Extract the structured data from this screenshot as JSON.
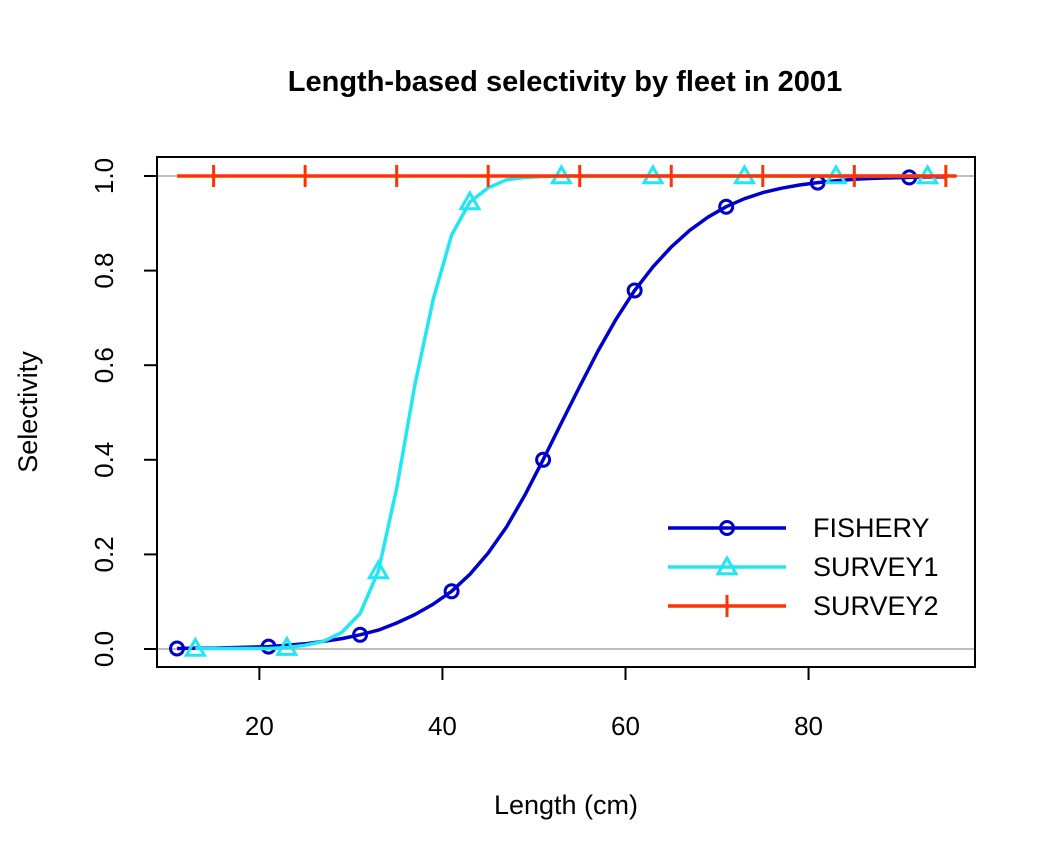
{
  "chart_data": {
    "type": "line",
    "title": "Length-based selectivity by fleet in 2001",
    "xlabel": "Length (cm)",
    "ylabel": "Selectivity",
    "xlim": [
      11,
      96
    ],
    "ylim": [
      0,
      1
    ],
    "x_ticks": [
      "20",
      "40",
      "60",
      "80"
    ],
    "y_ticks": [
      "0.0",
      "0.2",
      "0.4",
      "0.6",
      "0.8",
      "1.0"
    ],
    "reference_lines_y": [
      0,
      1
    ],
    "legend_position": "bottom-right",
    "series": [
      {
        "name": "FISHERY",
        "color": "#0000CD",
        "marker": "circle",
        "x": [
          11,
          13,
          15,
          17,
          19,
          21,
          23,
          25,
          27,
          29,
          31,
          33,
          35,
          37,
          39,
          41,
          43,
          45,
          47,
          49,
          51,
          53,
          55,
          57,
          59,
          61,
          63,
          65,
          67,
          69,
          71,
          73,
          75,
          77,
          79,
          81,
          83,
          85,
          87,
          89,
          91,
          93,
          95
        ],
        "y": [
          0.001,
          0.002,
          0.002,
          0.003,
          0.004,
          0.005,
          0.008,
          0.011,
          0.016,
          0.022,
          0.03,
          0.04,
          0.055,
          0.073,
          0.095,
          0.122,
          0.158,
          0.203,
          0.258,
          0.325,
          0.4,
          0.478,
          0.555,
          0.63,
          0.698,
          0.758,
          0.808,
          0.85,
          0.885,
          0.913,
          0.935,
          0.952,
          0.965,
          0.974,
          0.981,
          0.986,
          0.99,
          0.993,
          0.995,
          0.996,
          0.997,
          0.998,
          0.998
        ],
        "marker_x": [
          11,
          21,
          31,
          41,
          51,
          61,
          71,
          81,
          91
        ]
      },
      {
        "name": "SURVEY1",
        "color": "#22E6F2",
        "marker": "triangle",
        "x": [
          13,
          15,
          17,
          19,
          21,
          23,
          25,
          27,
          29,
          31,
          33,
          35,
          37,
          39,
          41,
          43,
          45,
          47,
          49,
          51,
          53,
          55,
          57,
          59,
          61,
          63,
          65,
          67,
          69,
          71,
          73,
          75,
          77,
          79,
          81,
          83,
          85,
          87,
          89,
          91,
          93,
          95
        ],
        "y": [
          0.001,
          0.001,
          0.001,
          0.001,
          0.001,
          0.003,
          0.008,
          0.016,
          0.035,
          0.075,
          0.165,
          0.34,
          0.56,
          0.74,
          0.875,
          0.945,
          0.975,
          0.992,
          0.997,
          0.999,
          1,
          1,
          1,
          1,
          1,
          1,
          1,
          1,
          1,
          1,
          1,
          1,
          1,
          1,
          1,
          1,
          1,
          1,
          1,
          1,
          1,
          1
        ],
        "marker_x": [
          13,
          23,
          33,
          43,
          53,
          63,
          73,
          83,
          93
        ]
      },
      {
        "name": "SURVEY2",
        "color": "#FF3300",
        "marker": "plus",
        "x": [
          11,
          96
        ],
        "y": [
          1,
          1
        ],
        "marker_x": [
          15,
          25,
          35,
          45,
          55,
          65,
          75,
          85,
          95
        ]
      }
    ]
  }
}
